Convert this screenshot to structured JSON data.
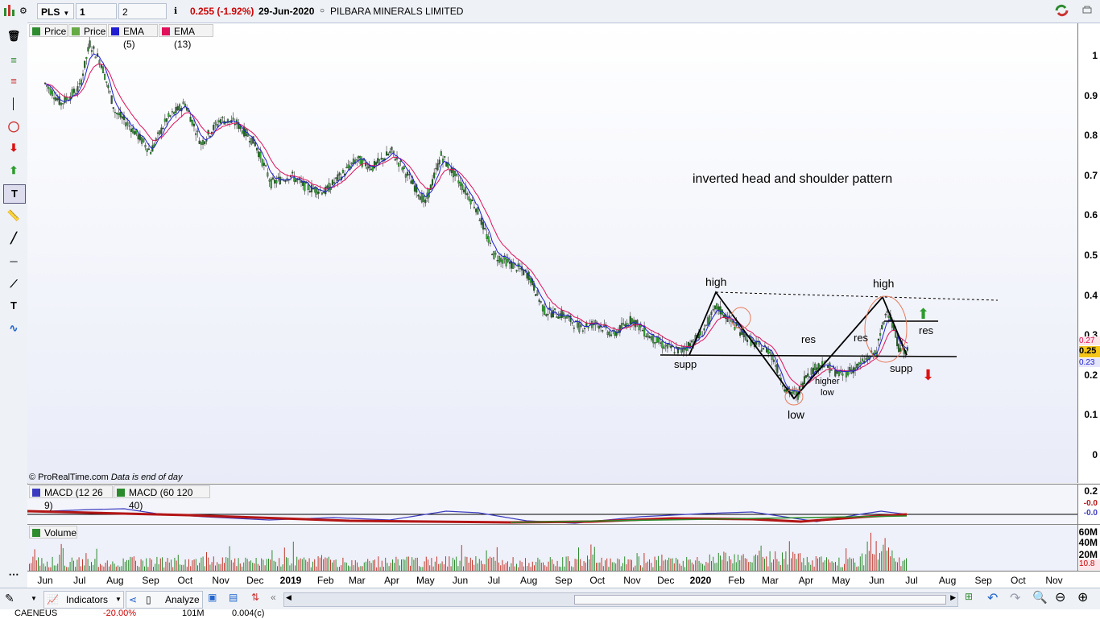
{
  "header": {
    "symbol": "PLS",
    "interval": "1 day",
    "period": "2 years",
    "last_change": "0.255 (-1.92%)",
    "date": "29-Jun-2020",
    "name": "PILBARA MINERALS LIMITED",
    "change_color": "#cc0000"
  },
  "legend_price": [
    {
      "label": "Price",
      "color": "#2e8b2e"
    },
    {
      "label": "Price",
      "color": "#66aa44"
    },
    {
      "label": "EMA (5)",
      "color": "#1f1fd1"
    },
    {
      "label": "EMA (13)",
      "color": "#e0105a"
    }
  ],
  "legend_macd": [
    {
      "label": "MACD (12 26 9)",
      "color": "#3b3bbf"
    },
    {
      "label": "MACD (60 120 40)",
      "color": "#2b8a2b"
    }
  ],
  "legend_volume": {
    "label": "Volume",
    "color": "#2e8b2e"
  },
  "watermark": "© ProRealTime.com",
  "watermark_note": "Data is end of day",
  "price_axis": {
    "ticks": [
      "1",
      "0.9",
      "0.8",
      "0.7",
      "0.6",
      "0.5",
      "0.4",
      "0.3",
      "0.2",
      "0.1",
      "0"
    ],
    "last_labels": [
      "0.27",
      "0.25",
      "0.23"
    ]
  },
  "macd_axis": {
    "ticks": [
      "0.2",
      "-0.0",
      "-0.0"
    ]
  },
  "volume_axis": {
    "ticks": [
      "60M",
      "40M",
      "20M",
      "10.8"
    ]
  },
  "x_axis": {
    "months": [
      "Jun",
      "Jul",
      "Aug",
      "Sep",
      "Oct",
      "Nov",
      "Dec",
      "2019",
      "Feb",
      "Mar",
      "Apr",
      "May",
      "Jun",
      "Jul",
      "Aug",
      "Sep",
      "Oct",
      "Nov",
      "Dec",
      "2020",
      "Feb",
      "Mar",
      "Apr",
      "May",
      "Jun",
      "Jul",
      "Aug",
      "Sep",
      "Oct",
      "Nov"
    ]
  },
  "annotations": {
    "title": "inverted head and shoulder pattern",
    "high_left": "high",
    "high_right": "high",
    "low": "low",
    "higher_low_1": "higher",
    "higher_low_2": "low",
    "res_1": "res",
    "res_2": "res",
    "res_3": "res",
    "supp_1": "supp",
    "supp_2": "supp"
  },
  "bottom": {
    "indicators": "Indicators",
    "analyze": "Analyze",
    "status_left": "CAENEUS",
    "status_mid1": "-20.00%",
    "status_mid2": "101M",
    "status_mid3": "0.004(c)"
  },
  "chart_data": {
    "type": "line",
    "title": "",
    "xlabel": "",
    "ylabel": "",
    "ylim": [
      0,
      1.05
    ],
    "series": [
      {
        "name": "Price",
        "x": [
          "2018-06-01",
          "2018-06-15",
          "2018-07-01",
          "2018-07-10",
          "2018-07-20",
          "2018-08-01",
          "2018-08-15",
          "2018-09-01",
          "2018-09-15",
          "2018-10-01",
          "2018-10-15",
          "2018-11-01",
          "2018-11-15",
          "2018-12-01",
          "2018-12-15",
          "2019-01-01",
          "2019-01-15",
          "2019-02-01",
          "2019-02-15",
          "2019-03-01",
          "2019-03-15",
          "2019-04-01",
          "2019-04-15",
          "2019-05-01",
          "2019-05-15",
          "2019-06-01",
          "2019-06-15",
          "2019-07-01",
          "2019-07-15",
          "2019-08-01",
          "2019-08-15",
          "2019-09-01",
          "2019-09-15",
          "2019-10-01",
          "2019-10-15",
          "2019-11-01",
          "2019-11-15",
          "2019-12-01",
          "2019-12-15",
          "2020-01-01",
          "2020-01-15",
          "2020-02-01",
          "2020-02-15",
          "2020-03-01",
          "2020-03-15",
          "2020-03-25",
          "2020-04-01",
          "2020-04-15",
          "2020-05-01",
          "2020-05-15",
          "2020-06-01",
          "2020-06-10",
          "2020-06-20",
          "2020-06-29"
        ],
        "values": [
          0.93,
          0.88,
          0.92,
          1.03,
          0.98,
          0.86,
          0.82,
          0.76,
          0.84,
          0.88,
          0.78,
          0.84,
          0.83,
          0.78,
          0.68,
          0.7,
          0.67,
          0.66,
          0.7,
          0.74,
          0.72,
          0.76,
          0.7,
          0.63,
          0.75,
          0.68,
          0.62,
          0.5,
          0.48,
          0.45,
          0.36,
          0.35,
          0.32,
          0.33,
          0.3,
          0.34,
          0.3,
          0.27,
          0.26,
          0.3,
          0.37,
          0.32,
          0.28,
          0.26,
          0.16,
          0.15,
          0.2,
          0.23,
          0.2,
          0.22,
          0.26,
          0.37,
          0.27,
          0.255
        ]
      }
    ]
  }
}
